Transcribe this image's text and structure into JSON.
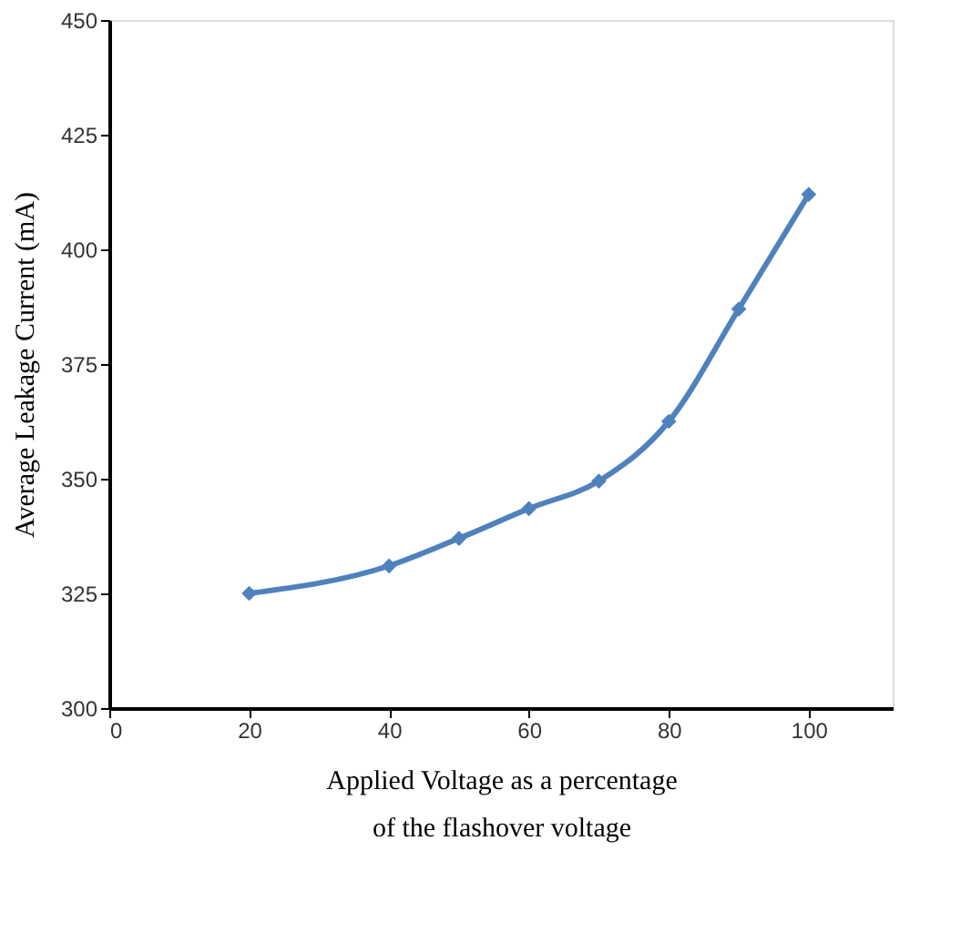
{
  "chart_data": {
    "type": "line",
    "xlabel": "Applied Voltage as a percentage\nof the flashover voltage",
    "ylabel": "Average Leakage Current (mA)",
    "x": [
      20,
      40,
      50,
      60,
      70,
      80,
      90,
      100
    ],
    "series": [
      {
        "color": "#4f81bd",
        "values": [
          325,
          331,
          337,
          343.5,
          349.5,
          362.5,
          387,
          412
        ]
      }
    ],
    "xlim": [
      0,
      112
    ],
    "xticks": [
      0,
      20,
      40,
      60,
      80,
      100
    ],
    "ylim": [
      300,
      450
    ],
    "yticks": [
      300,
      325,
      350,
      375,
      400,
      425,
      450
    ],
    "marker": "diamond",
    "line_style": "solid",
    "grid": false,
    "legend": false
  }
}
